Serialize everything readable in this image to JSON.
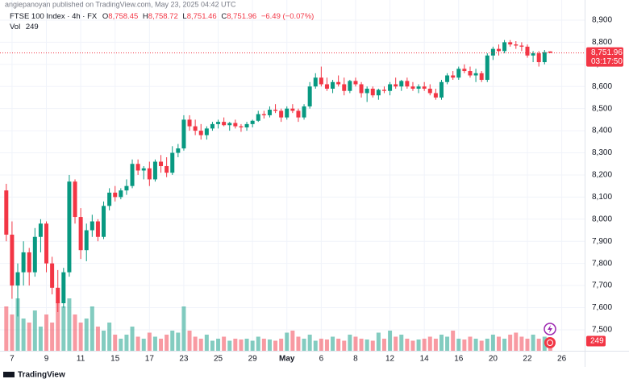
{
  "header": {
    "publisher": "angiepanoyan published on TradingView.com, May 23, 2025 04:42 UTC"
  },
  "chart_data": {
    "type": "candlestick",
    "symbol": "FTSE 100 Index · 4h · FX",
    "legend": {
      "open_key": "O",
      "open": "8,758.45",
      "high_key": "H",
      "high": "8,758.72",
      "low_key": "L",
      "low": "8,751.46",
      "close_key": "C",
      "close": "8,751.96",
      "change": "−6.49 (−0.07%)",
      "volume_key": "Vol",
      "volume": "249"
    },
    "countdown": "03:17:50",
    "up_color": "#089981",
    "down_color": "#f23645",
    "grid": true,
    "xlim": [
      -1.1,
      101
    ],
    "xticks": [
      {
        "value": 1,
        "label": "7"
      },
      {
        "value": 7,
        "label": "9"
      },
      {
        "value": 13,
        "label": "11"
      },
      {
        "value": 19,
        "label": "15"
      },
      {
        "value": 25,
        "label": "17"
      },
      {
        "value": 31,
        "label": "23"
      },
      {
        "value": 37,
        "label": "25"
      },
      {
        "value": 43,
        "label": "29"
      },
      {
        "value": 49,
        "label": "May"
      },
      {
        "value": 55,
        "label": "6"
      },
      {
        "value": 61,
        "label": "8"
      },
      {
        "value": 67,
        "label": "12"
      },
      {
        "value": 73,
        "label": "14"
      },
      {
        "value": 79,
        "label": "16"
      },
      {
        "value": 85,
        "label": "20"
      },
      {
        "value": 91,
        "label": "22"
      },
      {
        "value": 97,
        "label": "26"
      }
    ],
    "ylim": [
      7405,
      8991
    ],
    "yticks": [
      {
        "value": 7500,
        "label": "7,500"
      },
      {
        "value": 7600,
        "label": "7,600"
      },
      {
        "value": 7700,
        "label": "7,700"
      },
      {
        "value": 7800,
        "label": "7,800"
      },
      {
        "value": 7900,
        "label": "7,900"
      },
      {
        "value": 8000,
        "label": "8,000"
      },
      {
        "value": 8100,
        "label": "8,100"
      },
      {
        "value": 8200,
        "label": "8,200"
      },
      {
        "value": 8300,
        "label": "8,300"
      },
      {
        "value": 8400,
        "label": "8,400"
      },
      {
        "value": 8500,
        "label": "8,500"
      },
      {
        "value": 8600,
        "label": "8,600"
      },
      {
        "value": 8700,
        "label": "8,700"
      },
      {
        "value": 8800,
        "label": "8,800"
      },
      {
        "value": 8900,
        "label": "8,900"
      }
    ],
    "volume_lim": [
      0,
      8700
    ],
    "open": [
      8130,
      7930,
      7700,
      7760,
      7850,
      7760,
      7920,
      7980,
      7800,
      7690,
      7620,
      7760,
      8170,
      8010,
      7860,
      7950,
      7990,
      7920,
      8060,
      8120,
      8100,
      8130,
      8150,
      8250,
      8220,
      8230,
      8180,
      8260,
      8240,
      8210,
      8300,
      8320,
      8450,
      8420,
      8400,
      8380,
      8410,
      8430,
      8440,
      8425,
      8435,
      8420,
      8415,
      8430,
      8445,
      8475,
      8470,
      8495,
      8490,
      8460,
      8500,
      8490,
      8460,
      8510,
      8600,
      8640,
      8610,
      8590,
      8620,
      8610,
      8580,
      8625,
      8610,
      8570,
      8590,
      8560,
      8585,
      8580,
      8610,
      8600,
      8625,
      8600,
      8590,
      8600,
      8590,
      8570,
      8550,
      8620,
      8650,
      8640,
      8680,
      8670,
      8650,
      8660,
      8630,
      8740,
      8770,
      8760,
      8800,
      8790,
      8785,
      8780,
      8740,
      8750,
      8710,
      8758.45
    ],
    "high": [
      8160,
      7990,
      7800,
      7900,
      7870,
      7960,
      8000,
      7990,
      7830,
      7770,
      7780,
      8200,
      8180,
      8050,
      7980,
      8020,
      8000,
      8080,
      8140,
      8150,
      8140,
      8180,
      8270,
      8270,
      8240,
      8260,
      8270,
      8290,
      8280,
      8330,
      8340,
      8470,
      8470,
      8450,
      8430,
      8420,
      8440,
      8450,
      8460,
      8440,
      8450,
      8430,
      8440,
      8450,
      8490,
      8490,
      8510,
      8520,
      8500,
      8510,
      8520,
      8500,
      8520,
      8620,
      8660,
      8690,
      8640,
      8630,
      8650,
      8640,
      8630,
      8640,
      8620,
      8600,
      8600,
      8590,
      8600,
      8620,
      8640,
      8630,
      8640,
      8620,
      8610,
      8620,
      8610,
      8590,
      8630,
      8660,
      8670,
      8690,
      8700,
      8690,
      8680,
      8670,
      8750,
      8780,
      8790,
      8810,
      8810,
      8805,
      8800,
      8790,
      8760,
      8760,
      8765,
      8758.72
    ],
    "low": [
      7900,
      7640,
      7560,
      7700,
      7700,
      7740,
      7850,
      7760,
      7660,
      7580,
      7600,
      7740,
      7980,
      7820,
      7810,
      7920,
      7900,
      7910,
      8040,
      8080,
      8090,
      8110,
      8140,
      8200,
      8180,
      8150,
      8170,
      8210,
      8190,
      8200,
      8280,
      8310,
      8400,
      8380,
      8360,
      8360,
      8400,
      8410,
      8420,
      8400,
      8410,
      8395,
      8400,
      8415,
      8440,
      8455,
      8460,
      8480,
      8440,
      8450,
      8480,
      8440,
      8450,
      8500,
      8590,
      8600,
      8580,
      8570,
      8600,
      8560,
      8570,
      8600,
      8550,
      8530,
      8550,
      8540,
      8570,
      8560,
      8590,
      8580,
      8590,
      8580,
      8570,
      8580,
      8560,
      8540,
      8540,
      8610,
      8630,
      8630,
      8660,
      8640,
      8620,
      8620,
      8620,
      8720,
      8740,
      8750,
      8780,
      8770,
      8760,
      8730,
      8710,
      8690,
      8700,
      8751.46
    ],
    "close": [
      7930,
      7700,
      7760,
      7850,
      7760,
      7920,
      7980,
      7800,
      7690,
      7620,
      7760,
      8170,
      8010,
      7860,
      7950,
      7990,
      7920,
      8060,
      8120,
      8100,
      8130,
      8150,
      8250,
      8220,
      8230,
      8180,
      8260,
      8240,
      8210,
      8300,
      8320,
      8450,
      8420,
      8400,
      8380,
      8410,
      8430,
      8440,
      8425,
      8435,
      8420,
      8415,
      8430,
      8445,
      8475,
      8470,
      8495,
      8490,
      8460,
      8500,
      8490,
      8460,
      8510,
      8600,
      8640,
      8610,
      8590,
      8620,
      8610,
      8580,
      8625,
      8610,
      8570,
      8590,
      8560,
      8585,
      8580,
      8610,
      8600,
      8625,
      8600,
      8590,
      8600,
      8590,
      8570,
      8550,
      8620,
      8650,
      8640,
      8680,
      8670,
      8650,
      8660,
      8630,
      8740,
      8770,
      8760,
      8800,
      8790,
      8785,
      8780,
      8740,
      8750,
      8710,
      8755,
      8751.96
    ],
    "volume": [
      1100,
      900,
      1300,
      800,
      700,
      1000,
      600,
      900,
      700,
      1200,
      1100,
      1300,
      900,
      700,
      800,
      1100,
      600,
      500,
      700,
      400,
      300,
      400,
      600,
      350,
      300,
      450,
      350,
      300,
      400,
      500,
      450,
      1100,
      500,
      350,
      300,
      400,
      250,
      300,
      350,
      250,
      300,
      280,
      300,
      250,
      350,
      300,
      280,
      250,
      300,
      450,
      500,
      350,
      300,
      400,
      250,
      300,
      280,
      350,
      300,
      250,
      400,
      350,
      300,
      280,
      250,
      450,
      300,
      500,
      350,
      400,
      300,
      250,
      280,
      300,
      350,
      300,
      400,
      350,
      500,
      300,
      280,
      350,
      300,
      250,
      300,
      400,
      350,
      300,
      400,
      450,
      350,
      300,
      400,
      300,
      350,
      249
    ]
  },
  "footer": {
    "brand": "TradingView"
  }
}
